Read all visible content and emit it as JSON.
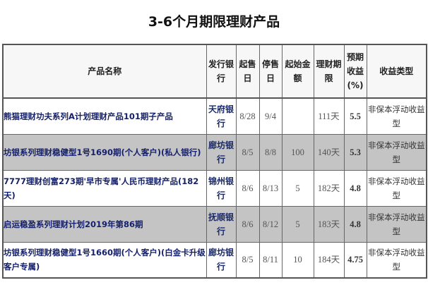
{
  "title": "3-6个月期限理财产品",
  "headers": [
    "产品名称",
    "发行银行",
    "起售日",
    "停售日",
    "起始金额",
    "理财期限",
    "预期收益(%)",
    "收益类型"
  ],
  "rows": [
    {
      "name": "熊猫理财功夫系列A计划理财产品101期子产品",
      "bank": "天府银行",
      "start": "8/28",
      "stop": "9/4",
      "min": "",
      "term": "111天",
      "yield": "5.5",
      "type": "非保本浮动收益型"
    },
    {
      "name": "坊银系列理财稳健型1号1690期(个人客户)(私人银行)",
      "bank": "廊坊银行",
      "start": "8/5",
      "stop": "8/8",
      "min": "100",
      "term": "140天",
      "yield": "5.3",
      "type": "非保本浮动收益型"
    },
    {
      "name": "7777理财创富273期'早市专属'人民币理财产品(182天)",
      "bank": "锦州银行",
      "start": "8/6",
      "stop": "8/13",
      "min": "5",
      "term": "182天",
      "yield": "4.8",
      "type": "非保本浮动收益型"
    },
    {
      "name": "启运稳盈系列理财计划2019年第86期",
      "bank": "抚顺银行",
      "start": "8/6",
      "stop": "8/12",
      "min": "5",
      "term": "183天",
      "yield": "4.8",
      "type": "非保本浮动收益型"
    },
    {
      "name": "坊银系列理财稳健型1号1660期(个人客户)(白金卡升级客户专属)",
      "bank": "廊坊银行",
      "start": "8/5",
      "stop": "8/11",
      "min": "10",
      "term": "184天",
      "yield": "4.75",
      "type": "非保本浮动收益型"
    }
  ]
}
